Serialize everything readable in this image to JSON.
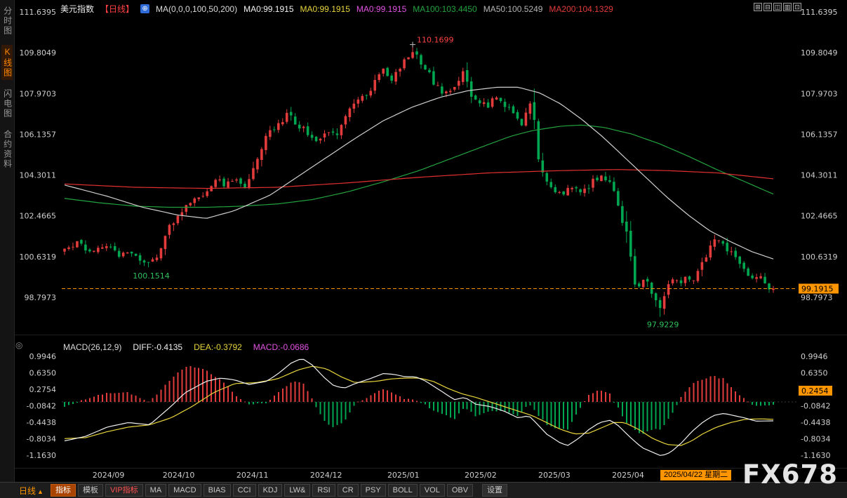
{
  "colors": {
    "bg": "#000000",
    "up": "#e23b3b",
    "down": "#00a650",
    "axis_text": "#cdcdcd",
    "accent_orange": "#ff9500",
    "ma50": "#cfcfcf",
    "ma100": "#23a33f",
    "ma200": "#e23030",
    "diff_line": "#f0f0f0",
    "dea_line": "#e8d53c",
    "annotation_red": "#ff4242",
    "annotation_green": "#2fc05f"
  },
  "sidebar": {
    "tabs": [
      {
        "name": "tab-time-chart",
        "label": "分时图",
        "active": false
      },
      {
        "name": "tab-kline-chart",
        "label": "K线图",
        "active": true
      },
      {
        "name": "tab-flash-chart",
        "label": "闪电图",
        "active": false
      },
      {
        "name": "tab-contract-info",
        "label": "合约资料",
        "active": false
      }
    ]
  },
  "header": {
    "symbol": "美元指数",
    "period": "【日线】",
    "symbol_icon_glyph": "⊕",
    "legend": [
      {
        "label": "MA(0,0,0,100,50,200)",
        "color": "#d8d8d8"
      },
      {
        "label": "MA0:99.1915",
        "color": "#f2f2f2"
      },
      {
        "label": "MA0:99.1915",
        "color": "#e8d53c"
      },
      {
        "label": "MA0:99.1915",
        "color": "#e353e3"
      },
      {
        "label": "MA100:103.4450",
        "color": "#23a33f"
      },
      {
        "label": "MA50:100.5249",
        "color": "#b5b5b5"
      },
      {
        "label": "MA200:104.1329",
        "color": "#e23b3b"
      }
    ],
    "window_icons": [
      {
        "name": "layout-grid-icon",
        "glyph": "⊞"
      },
      {
        "name": "layout-rows-icon",
        "glyph": "⊟"
      },
      {
        "name": "layout-columns-icon",
        "glyph": "◫"
      },
      {
        "name": "layout-panels-icon",
        "glyph": "▥"
      },
      {
        "name": "layout-single-icon",
        "glyph": "⊡"
      }
    ]
  },
  "macd_panel": {
    "icon_glyph": "◎",
    "header": [
      {
        "label": "MACD(26,12,9)",
        "color": "#d8d8d8"
      },
      {
        "label": "DIFF:-0.4135",
        "color": "#f0f0f0"
      },
      {
        "label": "DEA:-0.3792",
        "color": "#e8d53c"
      },
      {
        "label": "MACD:-0.0686",
        "color": "#e353e3"
      }
    ]
  },
  "toolbar": {
    "period": "日线",
    "period_arrow": "▲",
    "items": [
      {
        "name": "indicators",
        "label": "指标",
        "style": "active"
      },
      {
        "name": "templates",
        "label": "模板",
        "style": ""
      },
      {
        "name": "vip-indicators",
        "label": "VIP指标",
        "style": "vip"
      },
      {
        "name": "ma",
        "label": "MA",
        "style": ""
      },
      {
        "name": "macd",
        "label": "MACD",
        "style": ""
      },
      {
        "name": "bias",
        "label": "BIAS",
        "style": ""
      },
      {
        "name": "cci",
        "label": "CCI",
        "style": ""
      },
      {
        "name": "kdj",
        "label": "KDJ",
        "style": ""
      },
      {
        "name": "lwr",
        "label": "LW&",
        "style": ""
      },
      {
        "name": "rsi",
        "label": "RSI",
        "style": ""
      },
      {
        "name": "cr",
        "label": "CR",
        "style": ""
      },
      {
        "name": "psy",
        "label": "PSY",
        "style": ""
      },
      {
        "name": "boll",
        "label": "BOLL",
        "style": ""
      },
      {
        "name": "vol",
        "label": "VOL",
        "style": ""
      },
      {
        "name": "obv",
        "label": "OBV",
        "style": ""
      },
      {
        "name": "settings",
        "label": "设置",
        "style": "settings"
      }
    ]
  },
  "watermark": "FX678",
  "chart_data": {
    "type": "candlestick",
    "title": "美元指数 日线",
    "num_candles": 170,
    "price_ticks": [
      "111.6395",
      "109.8049",
      "107.9703",
      "106.1357",
      "104.3011",
      "102.4665",
      "100.6319",
      "98.7973"
    ],
    "macd_ticks": [
      "0.9946",
      "0.6350",
      "0.2754",
      "-0.0842",
      "-0.4438",
      "-0.8034",
      "-1.1630"
    ],
    "x_axis": {
      "months": [
        {
          "label": "2024/09",
          "t": 0.062
        },
        {
          "label": "2024/10",
          "t": 0.161
        },
        {
          "label": "2024/11",
          "t": 0.265
        },
        {
          "label": "2024/12",
          "t": 0.369
        },
        {
          "label": "2025/01",
          "t": 0.478
        },
        {
          "label": "2025/02",
          "t": 0.587
        },
        {
          "label": "2025/03",
          "t": 0.691
        },
        {
          "label": "2025/04",
          "t": 0.795
        }
      ],
      "date_badge": "2025/04/22 星期二"
    },
    "annotations": {
      "peak": 110.1699,
      "peak_t": 0.491,
      "low1": 100.1514,
      "low1_t": 0.118,
      "low2": 97.9229,
      "low2_t": 0.84,
      "last_price": 99.1915,
      "macd_value": 0.2454
    },
    "price_path": [
      [
        0,
        100.9
      ],
      [
        0.018,
        101.25
      ],
      [
        0.038,
        100.85
      ],
      [
        0.058,
        101.2
      ],
      [
        0.077,
        100.7
      ],
      [
        0.092,
        100.9
      ],
      [
        0.107,
        100.5
      ],
      [
        0.117,
        100.28
      ],
      [
        0.132,
        100.7
      ],
      [
        0.142,
        101.6
      ],
      [
        0.157,
        102.45
      ],
      [
        0.172,
        102.9
      ],
      [
        0.187,
        103.3
      ],
      [
        0.201,
        103.6
      ],
      [
        0.211,
        104.15
      ],
      [
        0.226,
        103.85
      ],
      [
        0.241,
        104.1
      ],
      [
        0.255,
        103.8
      ],
      [
        0.27,
        104.9
      ],
      [
        0.283,
        106.1
      ],
      [
        0.295,
        106.45
      ],
      [
        0.31,
        106.7
      ],
      [
        0.316,
        107.3
      ],
      [
        0.325,
        106.6
      ],
      [
        0.34,
        106.3
      ],
      [
        0.354,
        105.75
      ],
      [
        0.369,
        106.35
      ],
      [
        0.384,
        106.1
      ],
      [
        0.394,
        106.95
      ],
      [
        0.404,
        107.45
      ],
      [
        0.419,
        107.75
      ],
      [
        0.434,
        108.3
      ],
      [
        0.448,
        109.15
      ],
      [
        0.461,
        108.6
      ],
      [
        0.473,
        109.05
      ],
      [
        0.486,
        109.7
      ],
      [
        0.493,
        109.85
      ],
      [
        0.503,
        109.2
      ],
      [
        0.513,
        108.9
      ],
      [
        0.523,
        108.35
      ],
      [
        0.535,
        107.9
      ],
      [
        0.547,
        108.2
      ],
      [
        0.56,
        108.9
      ],
      [
        0.564,
        109.15
      ],
      [
        0.572,
        107.95
      ],
      [
        0.587,
        107.6
      ],
      [
        0.597,
        107.3
      ],
      [
        0.607,
        107.95
      ],
      [
        0.617,
        107.65
      ],
      [
        0.632,
        107.0
      ],
      [
        0.647,
        106.6
      ],
      [
        0.653,
        107.4
      ],
      [
        0.658,
        107.75
      ],
      [
        0.663,
        106.5
      ],
      [
        0.673,
        104.4
      ],
      [
        0.683,
        103.85
      ],
      [
        0.691,
        103.6
      ],
      [
        0.701,
        103.45
      ],
      [
        0.716,
        103.8
      ],
      [
        0.731,
        103.5
      ],
      [
        0.746,
        104.05
      ],
      [
        0.758,
        104.3
      ],
      [
        0.768,
        104.0
      ],
      [
        0.778,
        103.4
      ],
      [
        0.788,
        102.2
      ],
      [
        0.795,
        101.8
      ],
      [
        0.802,
        99.7
      ],
      [
        0.81,
        99.2
      ],
      [
        0.818,
        99.75
      ],
      [
        0.825,
        99.3
      ],
      [
        0.834,
        98.6
      ],
      [
        0.842,
        98.25
      ],
      [
        0.85,
        99.15
      ],
      [
        0.858,
        99.6
      ],
      [
        0.868,
        99.4
      ],
      [
        0.875,
        99.8
      ],
      [
        0.885,
        99.55
      ],
      [
        0.894,
        99.95
      ],
      [
        0.904,
        100.65
      ],
      [
        0.914,
        101.2
      ],
      [
        0.924,
        101.45
      ],
      [
        0.934,
        101.0
      ],
      [
        0.944,
        100.6
      ],
      [
        0.953,
        100.15
      ],
      [
        0.963,
        99.9
      ],
      [
        0.973,
        99.5
      ],
      [
        0.981,
        99.85
      ],
      [
        0.989,
        99.3
      ],
      [
        1,
        99.19
      ]
    ],
    "ma50": [
      [
        0,
        103.85
      ],
      [
        0.06,
        103.35
      ],
      [
        0.11,
        102.85
      ],
      [
        0.16,
        102.5
      ],
      [
        0.2,
        102.35
      ],
      [
        0.24,
        102.7
      ],
      [
        0.29,
        103.4
      ],
      [
        0.33,
        104.25
      ],
      [
        0.37,
        105.1
      ],
      [
        0.41,
        105.95
      ],
      [
        0.45,
        106.75
      ],
      [
        0.49,
        107.35
      ],
      [
        0.53,
        107.8
      ],
      [
        0.57,
        108.1
      ],
      [
        0.61,
        108.25
      ],
      [
        0.64,
        108.25
      ],
      [
        0.67,
        108.0
      ],
      [
        0.7,
        107.5
      ],
      [
        0.73,
        106.8
      ],
      [
        0.76,
        106.0
      ],
      [
        0.79,
        105.1
      ],
      [
        0.82,
        104.2
      ],
      [
        0.85,
        103.3
      ],
      [
        0.88,
        102.5
      ],
      [
        0.91,
        101.8
      ],
      [
        0.94,
        101.3
      ],
      [
        0.97,
        100.85
      ],
      [
        1,
        100.5249
      ]
    ],
    "ma100": [
      [
        0,
        103.25
      ],
      [
        0.05,
        103.05
      ],
      [
        0.1,
        102.9
      ],
      [
        0.15,
        102.85
      ],
      [
        0.2,
        102.85
      ],
      [
        0.25,
        102.9
      ],
      [
        0.3,
        103.0
      ],
      [
        0.35,
        103.2
      ],
      [
        0.4,
        103.55
      ],
      [
        0.45,
        104.0
      ],
      [
        0.5,
        104.5
      ],
      [
        0.55,
        105.1
      ],
      [
        0.6,
        105.7
      ],
      [
        0.63,
        106.05
      ],
      [
        0.66,
        106.3
      ],
      [
        0.7,
        106.5
      ],
      [
        0.73,
        106.55
      ],
      [
        0.76,
        106.45
      ],
      [
        0.8,
        106.15
      ],
      [
        0.84,
        105.7
      ],
      [
        0.88,
        105.15
      ],
      [
        0.92,
        104.55
      ],
      [
        0.96,
        104.0
      ],
      [
        1,
        103.445
      ]
    ],
    "ma200": [
      [
        0,
        103.9
      ],
      [
        0.1,
        103.75
      ],
      [
        0.2,
        103.7
      ],
      [
        0.3,
        103.75
      ],
      [
        0.4,
        103.95
      ],
      [
        0.5,
        104.2
      ],
      [
        0.6,
        104.4
      ],
      [
        0.7,
        104.5
      ],
      [
        0.78,
        104.55
      ],
      [
        0.85,
        104.5
      ],
      [
        0.92,
        104.4
      ],
      [
        1,
        104.1329
      ]
    ],
    "diff": [
      [
        0,
        -0.85
      ],
      [
        0.03,
        -0.75
      ],
      [
        0.06,
        -0.55
      ],
      [
        0.09,
        -0.45
      ],
      [
        0.12,
        -0.5
      ],
      [
        0.15,
        -0.1
      ],
      [
        0.17,
        0.2
      ],
      [
        0.2,
        0.45
      ],
      [
        0.22,
        0.52
      ],
      [
        0.24,
        0.48
      ],
      [
        0.26,
        0.38
      ],
      [
        0.285,
        0.45
      ],
      [
        0.3,
        0.6
      ],
      [
        0.32,
        0.85
      ],
      [
        0.335,
        0.95
      ],
      [
        0.35,
        0.8
      ],
      [
        0.365,
        0.55
      ],
      [
        0.38,
        0.35
      ],
      [
        0.395,
        0.3
      ],
      [
        0.41,
        0.4
      ],
      [
        0.43,
        0.5
      ],
      [
        0.45,
        0.62
      ],
      [
        0.465,
        0.6
      ],
      [
        0.48,
        0.55
      ],
      [
        0.495,
        0.55
      ],
      [
        0.51,
        0.45
      ],
      [
        0.53,
        0.25
      ],
      [
        0.55,
        0.05
      ],
      [
        0.565,
        0.1
      ],
      [
        0.58,
        -0.05
      ],
      [
        0.6,
        -0.1
      ],
      [
        0.62,
        -0.2
      ],
      [
        0.64,
        -0.35
      ],
      [
        0.655,
        -0.3
      ],
      [
        0.665,
        -0.45
      ],
      [
        0.68,
        -0.7
      ],
      [
        0.7,
        -0.9
      ],
      [
        0.71,
        -0.95
      ],
      [
        0.725,
        -0.8
      ],
      [
        0.74,
        -0.6
      ],
      [
        0.755,
        -0.45
      ],
      [
        0.77,
        -0.4
      ],
      [
        0.78,
        -0.5
      ],
      [
        0.8,
        -0.8
      ],
      [
        0.815,
        -1.0
      ],
      [
        0.83,
        -1.1
      ],
      [
        0.842,
        -1.18
      ],
      [
        0.855,
        -1.1
      ],
      [
        0.87,
        -0.9
      ],
      [
        0.885,
        -0.65
      ],
      [
        0.9,
        -0.45
      ],
      [
        0.915,
        -0.3
      ],
      [
        0.93,
        -0.25
      ],
      [
        0.945,
        -0.3
      ],
      [
        0.96,
        -0.35
      ],
      [
        0.975,
        -0.42
      ],
      [
        1,
        -0.4135
      ]
    ],
    "dea": [
      [
        0,
        -0.8
      ],
      [
        0.03,
        -0.78
      ],
      [
        0.06,
        -0.65
      ],
      [
        0.09,
        -0.55
      ],
      [
        0.12,
        -0.5
      ],
      [
        0.15,
        -0.35
      ],
      [
        0.18,
        -0.1
      ],
      [
        0.21,
        0.2
      ],
      [
        0.24,
        0.4
      ],
      [
        0.27,
        0.42
      ],
      [
        0.3,
        0.5
      ],
      [
        0.33,
        0.7
      ],
      [
        0.35,
        0.78
      ],
      [
        0.37,
        0.72
      ],
      [
        0.39,
        0.55
      ],
      [
        0.41,
        0.42
      ],
      [
        0.44,
        0.45
      ],
      [
        0.46,
        0.5
      ],
      [
        0.48,
        0.52
      ],
      [
        0.5,
        0.52
      ],
      [
        0.52,
        0.45
      ],
      [
        0.54,
        0.3
      ],
      [
        0.56,
        0.18
      ],
      [
        0.58,
        0.1
      ],
      [
        0.6,
        0.0
      ],
      [
        0.62,
        -0.1
      ],
      [
        0.64,
        -0.2
      ],
      [
        0.66,
        -0.3
      ],
      [
        0.68,
        -0.45
      ],
      [
        0.7,
        -0.6
      ],
      [
        0.72,
        -0.7
      ],
      [
        0.74,
        -0.68
      ],
      [
        0.76,
        -0.55
      ],
      [
        0.775,
        -0.45
      ],
      [
        0.79,
        -0.45
      ],
      [
        0.81,
        -0.6
      ],
      [
        0.83,
        -0.8
      ],
      [
        0.85,
        -0.93
      ],
      [
        0.87,
        -0.95
      ],
      [
        0.885,
        -0.85
      ],
      [
        0.9,
        -0.7
      ],
      [
        0.92,
        -0.55
      ],
      [
        0.94,
        -0.45
      ],
      [
        0.96,
        -0.38
      ],
      [
        0.98,
        -0.37
      ],
      [
        1,
        -0.3792
      ]
    ]
  }
}
